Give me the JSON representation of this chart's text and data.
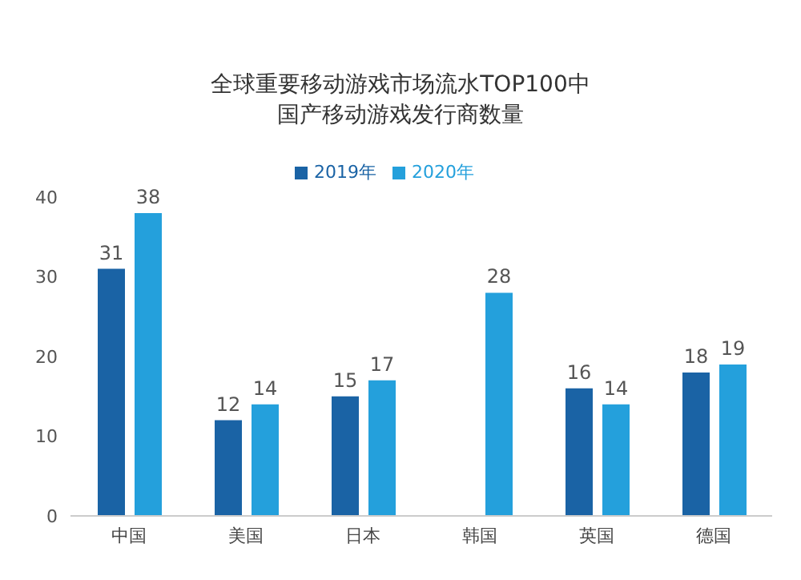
{
  "chart_data": {
    "type": "bar",
    "title": "全球重要移动游戏市场流水TOP100中国产移动游戏发行商数量",
    "categories": [
      "中国",
      "美国",
      "日本",
      "韩国",
      "英国",
      "德国"
    ],
    "series": [
      {
        "name": "2019年",
        "color": "#1a63a5",
        "values": [
          31,
          12,
          15,
          null,
          16,
          18
        ],
        "value_labels": [
          "31",
          "12",
          "15",
          null,
          "16",
          "18"
        ]
      },
      {
        "name": "2020年",
        "color": "#24a0dc",
        "values": [
          38,
          14,
          17,
          28,
          14,
          19
        ],
        "value_labels": [
          "38",
          "14",
          "17",
          "28",
          "14",
          "19"
        ]
      }
    ],
    "ylim": [
      0,
      40
    ],
    "yticks": [
      0,
      10,
      20,
      30,
      40
    ],
    "legend": "top",
    "grid": false
  }
}
